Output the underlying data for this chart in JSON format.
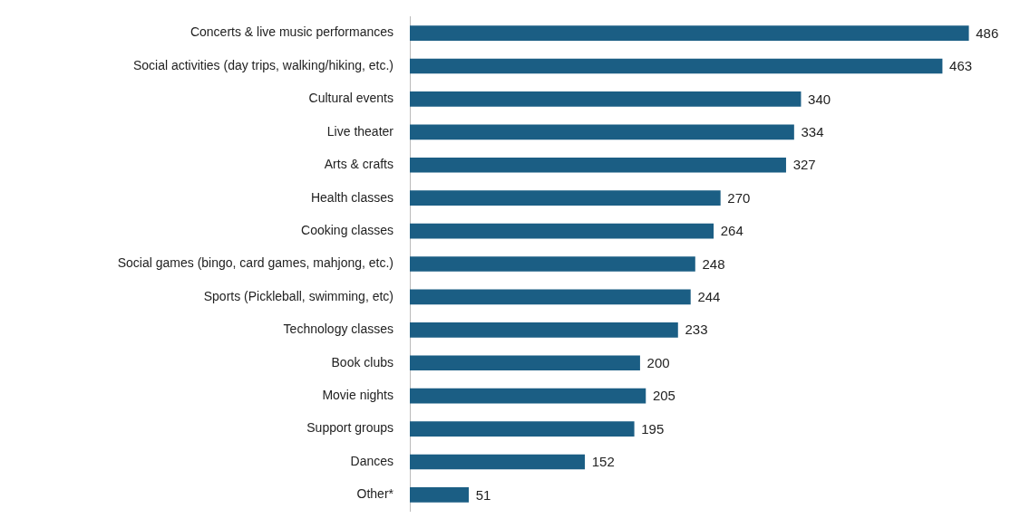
{
  "chart_data": {
    "type": "bar",
    "orientation": "horizontal",
    "categories": [
      "Concerts & live music performances",
      "Social activities (day trips, walking/hiking, etc.)",
      "Cultural events",
      "Live theater",
      "Arts & crafts",
      "Health classes",
      "Cooking classes",
      "Social games (bingo, card games, mahjong, etc.)",
      "Sports (Pickleball, swimming, etc)",
      "Technology classes",
      "Book clubs",
      "Movie nights",
      "Support groups",
      "Dances",
      "Other*"
    ],
    "values": [
      486,
      463,
      340,
      334,
      327,
      270,
      264,
      248,
      244,
      233,
      200,
      205,
      195,
      152,
      51
    ],
    "color": "#1b5e84",
    "data_labels": true,
    "legend": false
  }
}
